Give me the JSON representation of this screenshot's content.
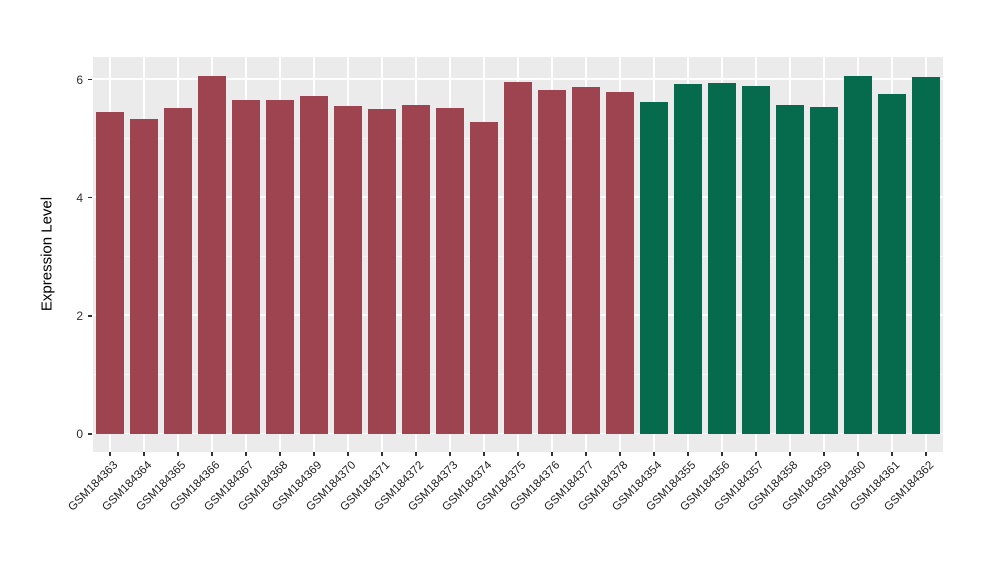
{
  "chart_data": {
    "type": "bar",
    "title": "",
    "xlabel": "",
    "ylabel": "Expression Level",
    "ylim": [
      -0.304,
      6.384
    ],
    "y_major_ticks": [
      0,
      2,
      4,
      6
    ],
    "y_minor_ticks": [
      1,
      3,
      5
    ],
    "grid": "on",
    "legend_position": "none",
    "panel_background": "#EBEBEB",
    "gridline_color": "#FFFFFF",
    "axis_tick_color": "#333333",
    "group_colors": {
      "group1": "#9E4350",
      "group2": "#066B4C"
    },
    "samples": [
      {
        "id": "GSM184363",
        "value": 5.46,
        "group": "group1"
      },
      {
        "id": "GSM184364",
        "value": 5.34,
        "group": "group1"
      },
      {
        "id": "GSM184365",
        "value": 5.52,
        "group": "group1"
      },
      {
        "id": "GSM184366",
        "value": 6.07,
        "group": "group1"
      },
      {
        "id": "GSM184367",
        "value": 5.66,
        "group": "group1"
      },
      {
        "id": "GSM184368",
        "value": 5.66,
        "group": "group1"
      },
      {
        "id": "GSM184369",
        "value": 5.72,
        "group": "group1"
      },
      {
        "id": "GSM184370",
        "value": 5.56,
        "group": "group1"
      },
      {
        "id": "GSM184371",
        "value": 5.51,
        "group": "group1"
      },
      {
        "id": "GSM184372",
        "value": 5.58,
        "group": "group1"
      },
      {
        "id": "GSM184373",
        "value": 5.52,
        "group": "group1"
      },
      {
        "id": "GSM184374",
        "value": 5.29,
        "group": "group1"
      },
      {
        "id": "GSM184375",
        "value": 5.96,
        "group": "group1"
      },
      {
        "id": "GSM184376",
        "value": 5.82,
        "group": "group1"
      },
      {
        "id": "GSM184377",
        "value": 5.87,
        "group": "group1"
      },
      {
        "id": "GSM184378",
        "value": 5.8,
        "group": "group1"
      },
      {
        "id": "GSM184354",
        "value": 5.63,
        "group": "group2"
      },
      {
        "id": "GSM184355",
        "value": 5.93,
        "group": "group2"
      },
      {
        "id": "GSM184356",
        "value": 5.94,
        "group": "group2"
      },
      {
        "id": "GSM184357",
        "value": 5.9,
        "group": "group2"
      },
      {
        "id": "GSM184358",
        "value": 5.58,
        "group": "group2"
      },
      {
        "id": "GSM184359",
        "value": 5.53,
        "group": "group2"
      },
      {
        "id": "GSM184360",
        "value": 6.06,
        "group": "group2"
      },
      {
        "id": "GSM184361",
        "value": 5.76,
        "group": "group2"
      },
      {
        "id": "GSM184362",
        "value": 6.05,
        "group": "group2"
      }
    ]
  }
}
